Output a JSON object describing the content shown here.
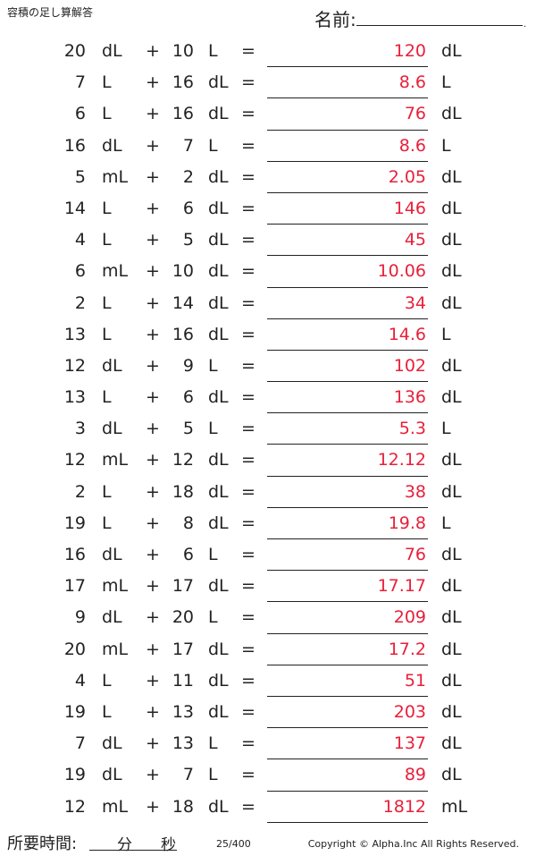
{
  "header": {
    "title": "容積の足し算解答",
    "name_label": "名前:",
    "name_dot": "."
  },
  "problems": [
    {
      "a": "20",
      "u1": "dL",
      "b": "10",
      "u2": "L",
      "ans": "120",
      "u3": "dL"
    },
    {
      "a": "7",
      "u1": "L",
      "b": "16",
      "u2": "dL",
      "ans": "8.6",
      "u3": "L"
    },
    {
      "a": "6",
      "u1": "L",
      "b": "16",
      "u2": "dL",
      "ans": "76",
      "u3": "dL"
    },
    {
      "a": "16",
      "u1": "dL",
      "b": "7",
      "u2": "L",
      "ans": "8.6",
      "u3": "L"
    },
    {
      "a": "5",
      "u1": "mL",
      "b": "2",
      "u2": "dL",
      "ans": "2.05",
      "u3": "dL"
    },
    {
      "a": "14",
      "u1": "L",
      "b": "6",
      "u2": "dL",
      "ans": "146",
      "u3": "dL"
    },
    {
      "a": "4",
      "u1": "L",
      "b": "5",
      "u2": "dL",
      "ans": "45",
      "u3": "dL"
    },
    {
      "a": "6",
      "u1": "mL",
      "b": "10",
      "u2": "dL",
      "ans": "10.06",
      "u3": "dL"
    },
    {
      "a": "2",
      "u1": "L",
      "b": "14",
      "u2": "dL",
      "ans": "34",
      "u3": "dL"
    },
    {
      "a": "13",
      "u1": "L",
      "b": "16",
      "u2": "dL",
      "ans": "14.6",
      "u3": "L"
    },
    {
      "a": "12",
      "u1": "dL",
      "b": "9",
      "u2": "L",
      "ans": "102",
      "u3": "dL"
    },
    {
      "a": "13",
      "u1": "L",
      "b": "6",
      "u2": "dL",
      "ans": "136",
      "u3": "dL"
    },
    {
      "a": "3",
      "u1": "dL",
      "b": "5",
      "u2": "L",
      "ans": "5.3",
      "u3": "L"
    },
    {
      "a": "12",
      "u1": "mL",
      "b": "12",
      "u2": "dL",
      "ans": "12.12",
      "u3": "dL"
    },
    {
      "a": "2",
      "u1": "L",
      "b": "18",
      "u2": "dL",
      "ans": "38",
      "u3": "dL"
    },
    {
      "a": "19",
      "u1": "L",
      "b": "8",
      "u2": "dL",
      "ans": "19.8",
      "u3": "L"
    },
    {
      "a": "16",
      "u1": "dL",
      "b": "6",
      "u2": "L",
      "ans": "76",
      "u3": "dL"
    },
    {
      "a": "17",
      "u1": "mL",
      "b": "17",
      "u2": "dL",
      "ans": "17.17",
      "u3": "dL"
    },
    {
      "a": "9",
      "u1": "dL",
      "b": "20",
      "u2": "L",
      "ans": "209",
      "u3": "dL"
    },
    {
      "a": "20",
      "u1": "mL",
      "b": "17",
      "u2": "dL",
      "ans": "17.2",
      "u3": "dL"
    },
    {
      "a": "4",
      "u1": "L",
      "b": "11",
      "u2": "dL",
      "ans": "51",
      "u3": "dL"
    },
    {
      "a": "19",
      "u1": "L",
      "b": "13",
      "u2": "dL",
      "ans": "203",
      "u3": "dL"
    },
    {
      "a": "7",
      "u1": "dL",
      "b": "13",
      "u2": "L",
      "ans": "137",
      "u3": "dL"
    },
    {
      "a": "19",
      "u1": "dL",
      "b": "7",
      "u2": "L",
      "ans": "89",
      "u3": "dL"
    },
    {
      "a": "12",
      "u1": "mL",
      "b": "18",
      "u2": "dL",
      "ans": "1812",
      "u3": "mL"
    }
  ],
  "symbols": {
    "plus": "+",
    "equals": "="
  },
  "colors": {
    "answer": "#e8203a",
    "text": "#222222"
  },
  "footer": {
    "time_label": "所要時間:",
    "minutes_label": "分",
    "seconds_label": "秒",
    "page": "25/400",
    "copyright": "Copyright © Alpha.Inc All Rights Reserved."
  }
}
